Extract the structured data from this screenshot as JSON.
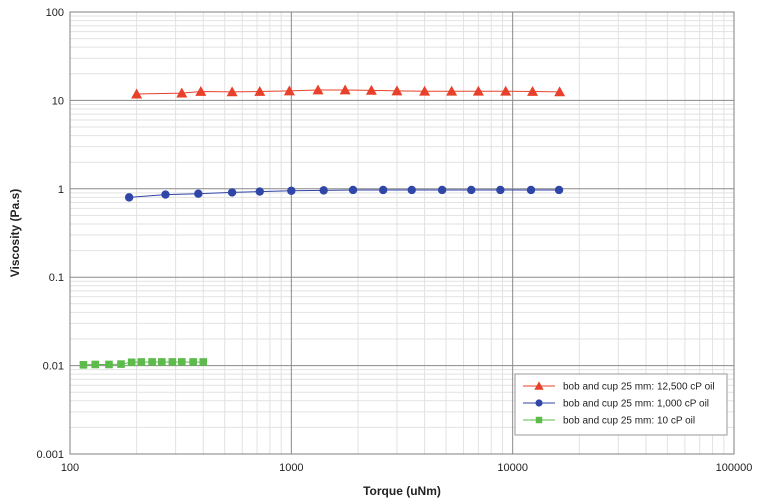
{
  "chart_data": {
    "type": "scatter",
    "xlabel": "Torque (uNm)",
    "ylabel": "Viscosity (Pa.s)",
    "x_scale": "log",
    "y_scale": "log",
    "xlim": [
      100,
      100000
    ],
    "ylim": [
      0.001,
      100
    ],
    "x_ticks": [
      "100",
      "1000",
      "10000",
      "100000"
    ],
    "y_ticks": [
      "0.001",
      "0.01",
      "0.1",
      "1",
      "10",
      "100"
    ],
    "grid": true,
    "legend_position": "bottom-right",
    "series": [
      {
        "name": "bob and cup 25 mm: 12,500 cP oil",
        "color": "#e8402a",
        "marker": "triangle",
        "x": [
          200,
          320,
          390,
          540,
          720,
          980,
          1320,
          1750,
          2300,
          3000,
          4000,
          5300,
          7000,
          9300,
          12300,
          16300
        ],
        "y": [
          11.8,
          12.1,
          12.6,
          12.5,
          12.6,
          12.8,
          13.1,
          13.1,
          13.0,
          12.8,
          12.7,
          12.7,
          12.7,
          12.7,
          12.6,
          12.5
        ]
      },
      {
        "name": "bob and cup 25 mm: 1,000 cP oil",
        "color": "#2f45a8",
        "marker": "circle",
        "x": [
          185,
          270,
          380,
          540,
          720,
          1000,
          1400,
          1900,
          2600,
          3500,
          4800,
          6500,
          8800,
          12100,
          16200
        ],
        "y": [
          0.8,
          0.86,
          0.88,
          0.91,
          0.93,
          0.95,
          0.96,
          0.97,
          0.97,
          0.97,
          0.97,
          0.97,
          0.97,
          0.97,
          0.97
        ]
      },
      {
        "name": "bob and cup 25 mm: 10 cP oil",
        "color": "#5dbb4c",
        "marker": "square",
        "x": [
          115,
          130,
          150,
          170,
          190,
          210,
          235,
          260,
          290,
          320,
          360,
          400
        ],
        "y": [
          0.0102,
          0.0103,
          0.0103,
          0.0104,
          0.0109,
          0.011,
          0.011,
          0.011,
          0.011,
          0.011,
          0.011,
          0.011
        ]
      }
    ]
  }
}
